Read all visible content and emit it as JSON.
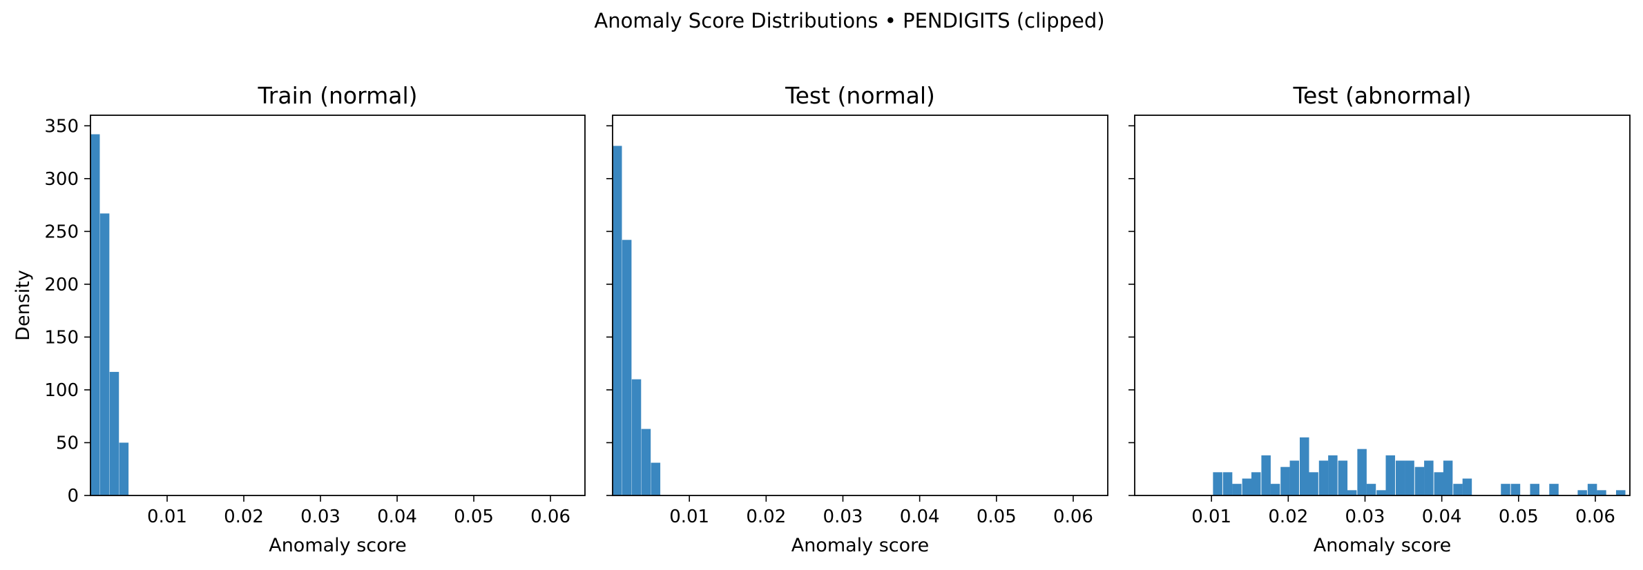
{
  "figure": {
    "suptitle": "Anomaly Score Distributions • PENDIGITS (clipped)",
    "bar_color": "#3a87c0"
  },
  "chart_data": [
    {
      "type": "bar",
      "title": "Train (normal)",
      "xlabel": "Anomaly score",
      "ylabel": "Density",
      "xlim": [
        0.0,
        0.0645
      ],
      "ylim": [
        0,
        360
      ],
      "xticks": [
        "0.01",
        "0.02",
        "0.03",
        "0.04",
        "0.05",
        "0.06"
      ],
      "yticks": [
        "0",
        "50",
        "100",
        "150",
        "200",
        "250",
        "300",
        "350"
      ],
      "bin_width": 0.00125,
      "bins": [
        {
          "x0": 0.0,
          "value": 342
        },
        {
          "x0": 0.00125,
          "value": 267
        },
        {
          "x0": 0.0025,
          "value": 117
        },
        {
          "x0": 0.00375,
          "value": 50
        }
      ]
    },
    {
      "type": "bar",
      "title": "Test (normal)",
      "xlabel": "Anomaly score",
      "ylabel": "",
      "xlim": [
        0.0,
        0.0645
      ],
      "ylim": [
        0,
        360
      ],
      "xticks": [
        "0.01",
        "0.02",
        "0.03",
        "0.04",
        "0.05",
        "0.06"
      ],
      "yticks": [],
      "bin_width": 0.00125,
      "bins": [
        {
          "x0": 0.0,
          "value": 331
        },
        {
          "x0": 0.00125,
          "value": 242
        },
        {
          "x0": 0.0025,
          "value": 110
        },
        {
          "x0": 0.00375,
          "value": 63
        },
        {
          "x0": 0.005,
          "value": 31
        }
      ]
    },
    {
      "type": "bar",
      "title": "Test (abnormal)",
      "xlabel": "Anomaly score",
      "ylabel": "",
      "xlim": [
        0.0,
        0.0645
      ],
      "ylim": [
        0,
        360
      ],
      "xticks": [
        "0.01",
        "0.02",
        "0.03",
        "0.04",
        "0.05",
        "0.06"
      ],
      "yticks": [],
      "bin_width": 0.00125,
      "bins": [
        {
          "x0": 0.0102,
          "value": 22
        },
        {
          "x0": 0.0115,
          "value": 22
        },
        {
          "x0": 0.0127,
          "value": 11
        },
        {
          "x0": 0.014,
          "value": 16
        },
        {
          "x0": 0.0152,
          "value": 22
        },
        {
          "x0": 0.0165,
          "value": 38
        },
        {
          "x0": 0.0177,
          "value": 11
        },
        {
          "x0": 0.019,
          "value": 27
        },
        {
          "x0": 0.0202,
          "value": 33
        },
        {
          "x0": 0.0215,
          "value": 55
        },
        {
          "x0": 0.0227,
          "value": 22
        },
        {
          "x0": 0.024,
          "value": 33
        },
        {
          "x0": 0.0252,
          "value": 38
        },
        {
          "x0": 0.0265,
          "value": 33
        },
        {
          "x0": 0.0277,
          "value": 5
        },
        {
          "x0": 0.029,
          "value": 44
        },
        {
          "x0": 0.0302,
          "value": 11
        },
        {
          "x0": 0.0315,
          "value": 5
        },
        {
          "x0": 0.0327,
          "value": 38
        },
        {
          "x0": 0.034,
          "value": 33
        },
        {
          "x0": 0.0352,
          "value": 33
        },
        {
          "x0": 0.0365,
          "value": 27
        },
        {
          "x0": 0.0377,
          "value": 33
        },
        {
          "x0": 0.039,
          "value": 22
        },
        {
          "x0": 0.0402,
          "value": 33
        },
        {
          "x0": 0.0415,
          "value": 11
        },
        {
          "x0": 0.0427,
          "value": 16
        },
        {
          "x0": 0.0477,
          "value": 11
        },
        {
          "x0": 0.049,
          "value": 11
        },
        {
          "x0": 0.0515,
          "value": 11
        },
        {
          "x0": 0.054,
          "value": 11
        },
        {
          "x0": 0.0577,
          "value": 5
        },
        {
          "x0": 0.059,
          "value": 11
        },
        {
          "x0": 0.0602,
          "value": 5
        },
        {
          "x0": 0.0627,
          "value": 5
        }
      ]
    }
  ]
}
